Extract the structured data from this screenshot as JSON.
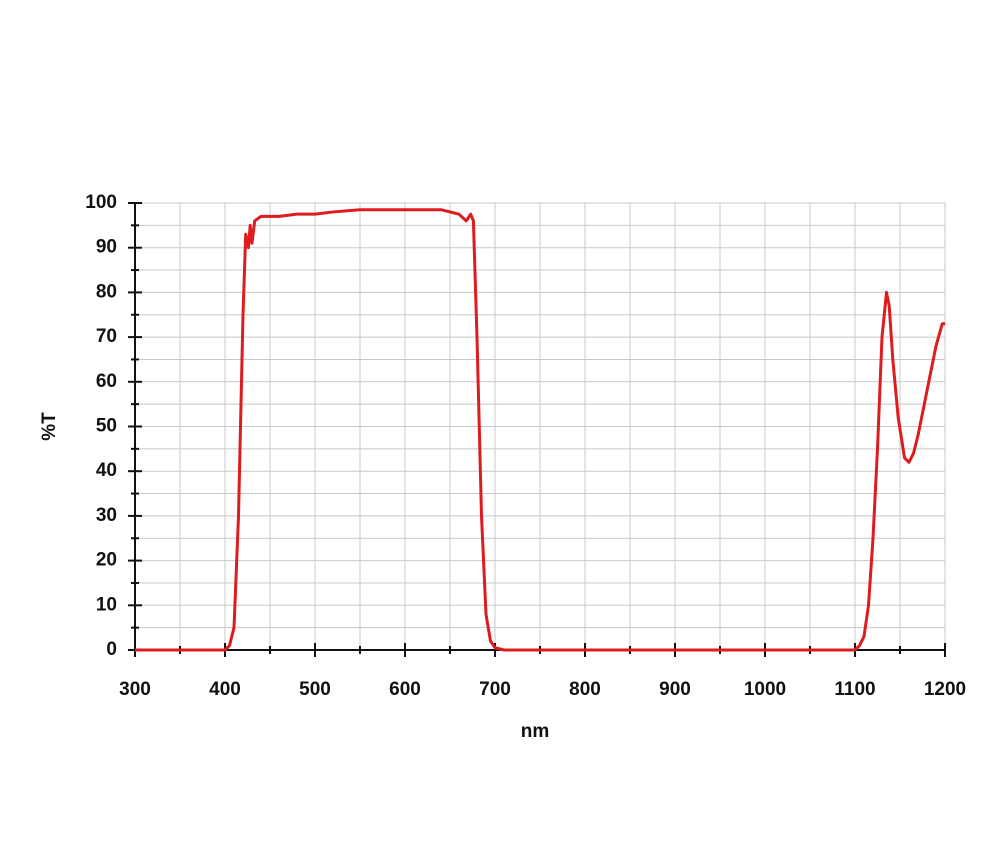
{
  "chart_data": {
    "type": "line",
    "x_label": "nm",
    "y_label": "%T",
    "x": [
      300,
      400,
      405,
      410,
      415,
      420,
      423,
      426,
      428,
      430,
      433,
      440,
      460,
      480,
      500,
      520,
      550,
      600,
      640,
      660,
      668,
      673,
      676,
      680,
      685,
      690,
      695,
      700,
      710,
      1100,
      1105,
      1110,
      1115,
      1120,
      1125,
      1130,
      1135,
      1138,
      1142,
      1148,
      1155,
      1160,
      1165,
      1170,
      1180,
      1190,
      1197,
      1200
    ],
    "values": [
      0,
      0,
      1,
      5,
      30,
      75,
      93,
      90,
      95,
      91,
      96,
      97,
      97,
      97.5,
      97.5,
      98,
      98.5,
      98.5,
      98.5,
      97.5,
      96,
      97.5,
      96,
      70,
      30,
      8,
      2,
      0.5,
      0,
      0,
      1,
      3,
      10,
      25,
      45,
      70,
      80,
      77,
      65,
      52,
      43,
      42,
      44,
      48,
      58,
      68,
      73,
      73
    ],
    "color": "#dd1c1f",
    "xlim": [
      300,
      1200
    ],
    "ylim": [
      0,
      100
    ],
    "xticks": [
      300,
      400,
      500,
      600,
      700,
      800,
      900,
      1000,
      1100,
      1200
    ],
    "yticks": [
      0,
      10,
      20,
      30,
      40,
      50,
      60,
      70,
      80,
      90,
      100
    ],
    "x_minor_ticks": [
      350,
      450,
      550,
      650,
      750,
      850,
      950,
      1050,
      1150
    ],
    "y_minor_ticks": [
      5,
      15,
      25,
      35,
      45,
      55,
      65,
      75,
      85,
      95
    ],
    "grid": true
  }
}
